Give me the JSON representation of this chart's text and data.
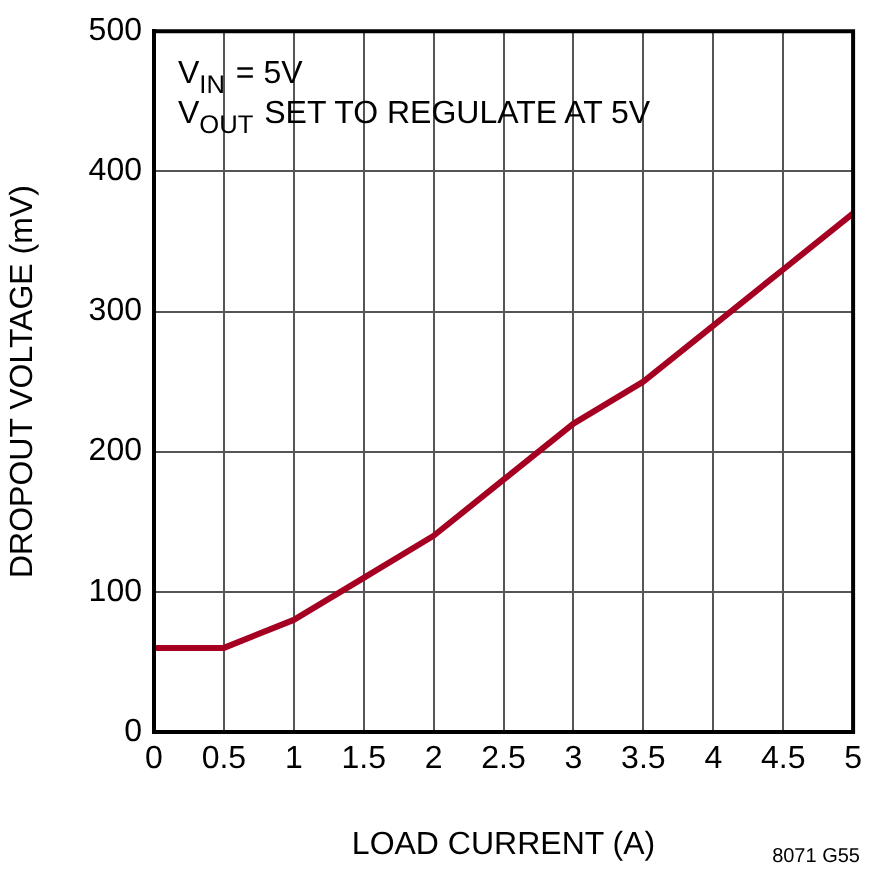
{
  "chart_data": {
    "type": "line",
    "xlabel": "LOAD CURRENT (A)",
    "ylabel": "DROPOUT VOLTAGE (mV)",
    "x": [
      0,
      0.5,
      1,
      1.5,
      2,
      2.5,
      3,
      3.5,
      4,
      4.5,
      5
    ],
    "series": [
      {
        "color": "#a50021",
        "values": [
          60,
          60,
          80,
          110,
          140,
          180,
          220,
          250,
          290,
          330,
          370
        ]
      }
    ],
    "xlim": [
      0,
      5
    ],
    "xticks": [
      0,
      0.5,
      1,
      1.5,
      2,
      2.5,
      3,
      3.5,
      4,
      4.5,
      5
    ],
    "ylim": [
      0,
      500
    ],
    "yticks": [
      0,
      100,
      200,
      300,
      400,
      500
    ],
    "grid": true,
    "legend": false,
    "marker": "none",
    "line_style": "solid",
    "annotations": [
      "V$_{IN}$ = 5V",
      "V$_{OUT}$ SET TO REGULATE AT 5V",
      "8071 G55"
    ]
  }
}
